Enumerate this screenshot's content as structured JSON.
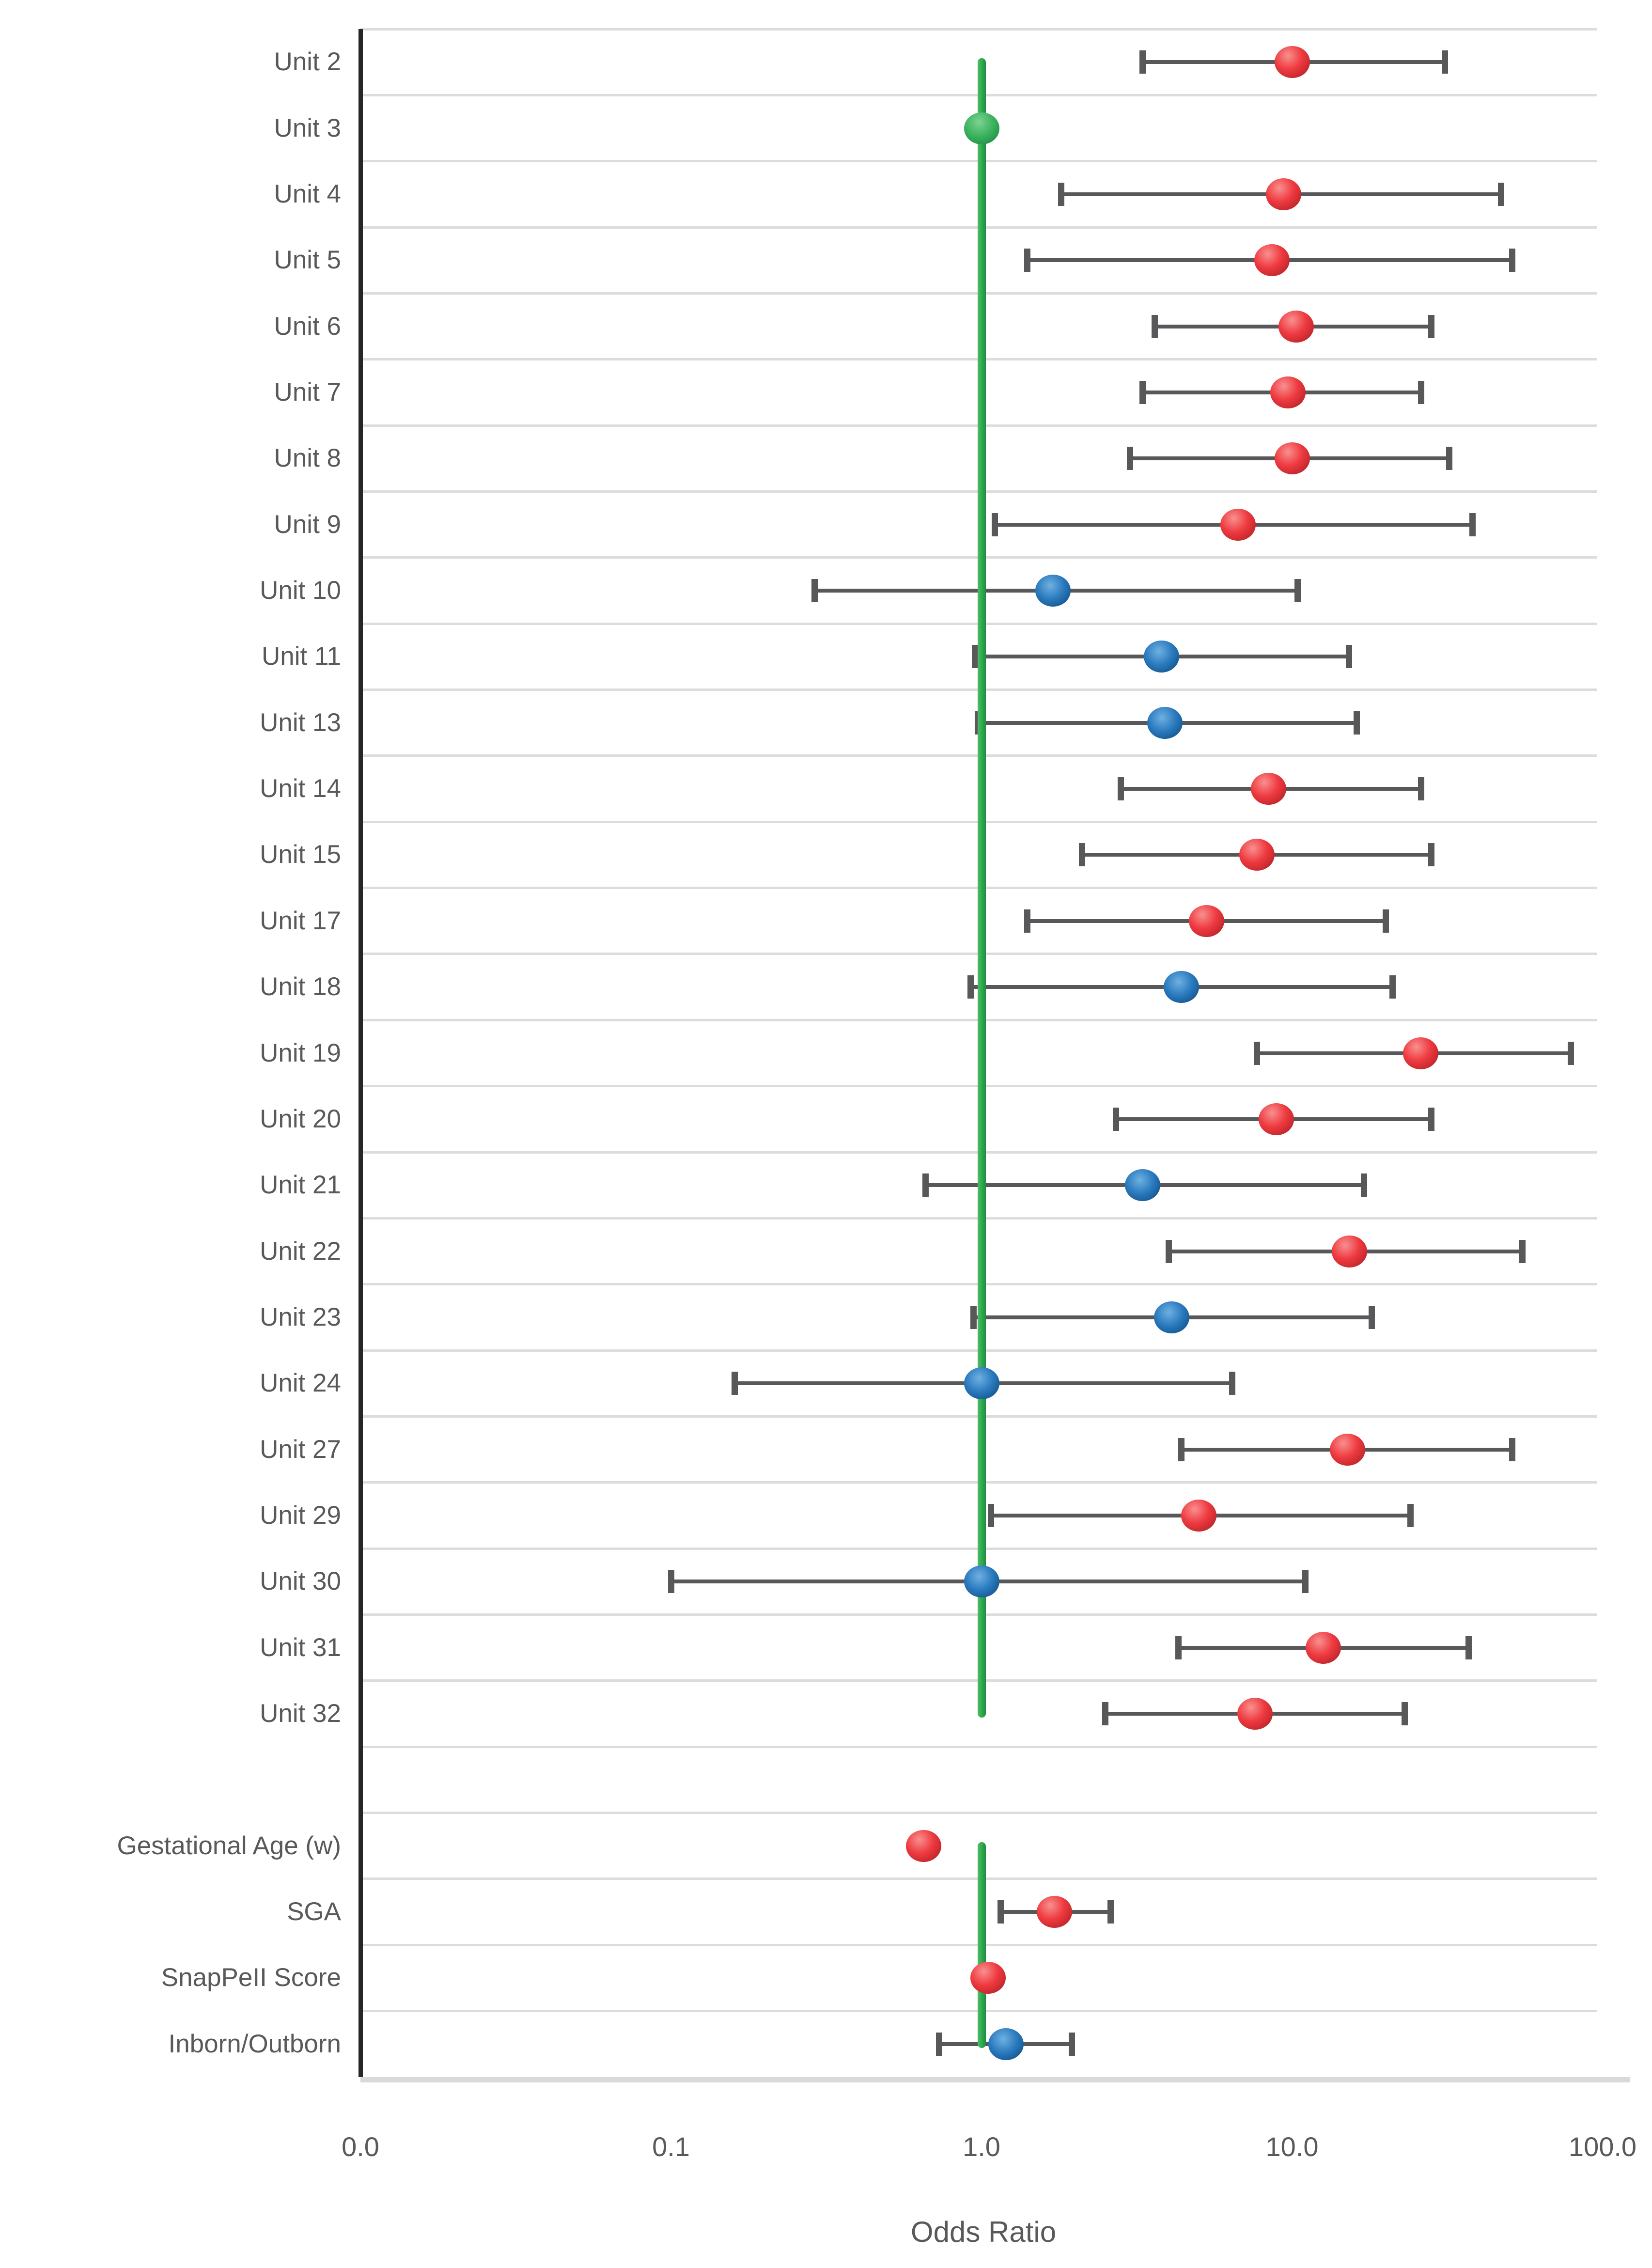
{
  "chart_data": {
    "type": "scatter",
    "subtype": "forest-plot",
    "title": "",
    "xlabel": "Odds Ratio",
    "ylabel": "",
    "x_axis": {
      "scale": "log",
      "range": [
        0.01,
        100
      ],
      "grid": "horizontal-rows-only",
      "ticks": [
        {
          "label": "0.0",
          "value": 0.01
        },
        {
          "label": "0.1",
          "value": 0.1
        },
        {
          "label": "1.0",
          "value": 1.0
        },
        {
          "label": "10.0",
          "value": 10.0
        },
        {
          "label": "100.0",
          "value": 100.0
        }
      ]
    },
    "reference_line": {
      "value": 1.0,
      "color": "#2fa84f"
    },
    "colors": {
      "significant": "#ee3a40",
      "non_significant": "#2979bd",
      "reference": "#3cb25d",
      "whisker": "#58585a",
      "gridline": "#dcdcdd",
      "axis_line": "#262626",
      "baseline_bar": "#d9d9d9",
      "text": "#595959"
    },
    "legend": {
      "shown": false
    },
    "rows": [
      {
        "label": "Unit 2",
        "group": "red",
        "or": 10.0,
        "ci_low": 3.3,
        "ci_high": 31
      },
      {
        "label": "Unit 3",
        "group": "green",
        "or": 1.0,
        "ci_low": null,
        "ci_high": null
      },
      {
        "label": "Unit 4",
        "group": "red",
        "or": 9.4,
        "ci_low": 1.8,
        "ci_high": 47
      },
      {
        "label": "Unit 5",
        "group": "red",
        "or": 8.6,
        "ci_low": 1.4,
        "ci_high": 51
      },
      {
        "label": "Unit 6",
        "group": "red",
        "or": 10.3,
        "ci_low": 3.6,
        "ci_high": 28
      },
      {
        "label": "Unit 7",
        "group": "red",
        "or": 9.7,
        "ci_low": 3.3,
        "ci_high": 26
      },
      {
        "label": "Unit 8",
        "group": "red",
        "or": 10.0,
        "ci_low": 3.0,
        "ci_high": 32
      },
      {
        "label": "Unit 9",
        "group": "red",
        "or": 6.7,
        "ci_low": 1.1,
        "ci_high": 38
      },
      {
        "label": "Unit 10",
        "group": "blue",
        "or": 1.7,
        "ci_low": 0.29,
        "ci_high": 10.4
      },
      {
        "label": "Unit 11",
        "group": "blue",
        "or": 3.8,
        "ci_low": 0.95,
        "ci_high": 15.2
      },
      {
        "label": "Unit 13",
        "group": "blue",
        "or": 3.9,
        "ci_low": 0.97,
        "ci_high": 16.1
      },
      {
        "label": "Unit 14",
        "group": "red",
        "or": 8.4,
        "ci_low": 2.8,
        "ci_high": 26
      },
      {
        "label": "Unit 15",
        "group": "red",
        "or": 7.7,
        "ci_low": 2.1,
        "ci_high": 28
      },
      {
        "label": "Unit 17",
        "group": "red",
        "or": 5.3,
        "ci_low": 1.4,
        "ci_high": 20
      },
      {
        "label": "Unit 18",
        "group": "blue",
        "or": 4.4,
        "ci_low": 0.92,
        "ci_high": 21
      },
      {
        "label": "Unit 19",
        "group": "red",
        "or": 26.0,
        "ci_low": 7.7,
        "ci_high": 79
      },
      {
        "label": "Unit 20",
        "group": "red",
        "or": 8.9,
        "ci_low": 2.7,
        "ci_high": 28
      },
      {
        "label": "Unit 21",
        "group": "blue",
        "or": 3.3,
        "ci_low": 0.66,
        "ci_high": 17
      },
      {
        "label": "Unit 22",
        "group": "red",
        "or": 15.3,
        "ci_low": 4.0,
        "ci_high": 55
      },
      {
        "label": "Unit 23",
        "group": "blue",
        "or": 4.1,
        "ci_low": 0.94,
        "ci_high": 18
      },
      {
        "label": "Unit 24",
        "group": "blue",
        "or": 1.0,
        "ci_low": 0.16,
        "ci_high": 6.4
      },
      {
        "label": "Unit 27",
        "group": "red",
        "or": 15.1,
        "ci_low": 4.4,
        "ci_high": 51
      },
      {
        "label": "Unit 29",
        "group": "red",
        "or": 5.0,
        "ci_low": 1.07,
        "ci_high": 24
      },
      {
        "label": "Unit 30",
        "group": "blue",
        "or": 1.0,
        "ci_low": 0.1,
        "ci_high": 11
      },
      {
        "label": "Unit 31",
        "group": "red",
        "or": 12.6,
        "ci_low": 4.3,
        "ci_high": 37
      },
      {
        "label": "Unit 32",
        "group": "red",
        "or": 7.6,
        "ci_low": 2.5,
        "ci_high": 23
      },
      {
        "label": "",
        "group": "gap",
        "or": null,
        "ci_low": null,
        "ci_high": null
      },
      {
        "label": "Gestational Age (w)",
        "group": "red",
        "or": 0.65,
        "ci_low": null,
        "ci_high": null
      },
      {
        "label": "SGA",
        "group": "red",
        "or": 1.72,
        "ci_low": 1.15,
        "ci_high": 2.6
      },
      {
        "label": "SnapPeII Score",
        "group": "red",
        "or": 1.05,
        "ci_low": null,
        "ci_high": null
      },
      {
        "label": "Inborn/Outborn",
        "group": "blue",
        "or": 1.2,
        "ci_low": 0.73,
        "ci_high": 1.95
      }
    ]
  }
}
